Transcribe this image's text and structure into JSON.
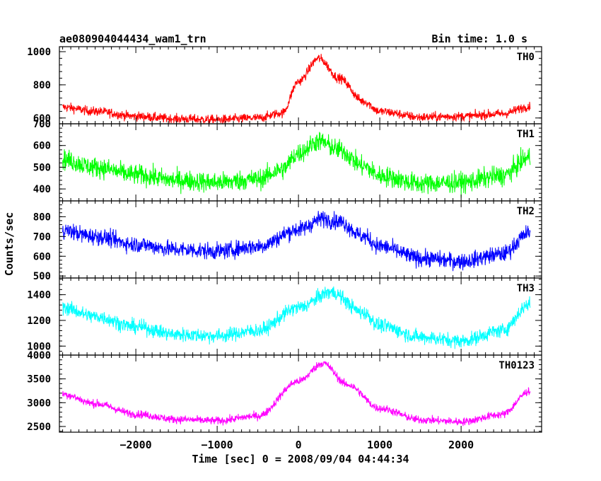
{
  "header": {
    "title": "ae080904044434_wam1_trn",
    "bin_time": "Bin time: 1.0 s"
  },
  "axes": {
    "xlabel": "Time [sec] 0 = 2008/09/04 04:44:34",
    "ylabel": "Counts/sec",
    "xlim": [
      -2940,
      2990
    ],
    "xticks": [
      -2000,
      -1000,
      0,
      1000,
      2000
    ],
    "xtick_labels": [
      "−2000",
      "−1000",
      "0",
      "1000",
      "2000"
    ]
  },
  "chart_data": {
    "type": "line",
    "title": "ae080904044434_wam1_trn",
    "xlabel": "Time [sec] 0 = 2008/09/04 04:44:34",
    "ylabel": "Counts/sec",
    "bin_time_s": 1.0,
    "x_range": [
      -2900,
      2850
    ],
    "grid": false,
    "legend": "none",
    "panels": [
      {
        "name": "TH0",
        "color": "#ff0000",
        "ylim": [
          565,
          1030
        ],
        "yticks": [
          600,
          800,
          1000
        ],
        "x": [
          -2900,
          -2500,
          -2000,
          -1500,
          -1000,
          -500,
          -200,
          0,
          250,
          500,
          800,
          1000,
          1500,
          2000,
          2500,
          2850
        ],
        "y": [
          665,
          640,
          610,
          595,
          590,
          600,
          630,
          820,
          960,
          840,
          700,
          640,
          605,
          610,
          625,
          670
        ],
        "noise": 30
      },
      {
        "name": "TH1",
        "color": "#00ff00",
        "ylim": [
          345,
          700
        ],
        "yticks": [
          400,
          500,
          600,
          700
        ],
        "x": [
          -2900,
          -2500,
          -2000,
          -1500,
          -1000,
          -500,
          -200,
          0,
          250,
          500,
          800,
          1000,
          1500,
          2000,
          2500,
          2850
        ],
        "y": [
          535,
          500,
          465,
          440,
          430,
          445,
          490,
          565,
          620,
          580,
          505,
          460,
          425,
          430,
          460,
          545
        ],
        "noise": 50
      },
      {
        "name": "TH2",
        "color": "#0000ff",
        "ylim": [
          490,
          880
        ],
        "yticks": [
          500,
          600,
          700,
          800
        ],
        "x": [
          -2900,
          -2500,
          -2000,
          -1500,
          -1000,
          -500,
          0,
          300,
          500,
          800,
          1000,
          1500,
          2000,
          2500,
          2850
        ],
        "y": [
          730,
          700,
          660,
          635,
          625,
          650,
          735,
          790,
          775,
          700,
          650,
          590,
          575,
          610,
          720
        ],
        "noise": 45
      },
      {
        "name": "TH3",
        "color": "#00ffff",
        "ylim": [
          930,
          1530
        ],
        "yticks": [
          1000,
          1200,
          1400
        ],
        "x": [
          -2900,
          -2500,
          -2000,
          -1500,
          -1000,
          -500,
          0,
          400,
          800,
          1000,
          1500,
          2000,
          2500,
          2850
        ],
        "y": [
          1300,
          1230,
          1150,
          1090,
          1080,
          1120,
          1300,
          1420,
          1260,
          1160,
          1070,
          1040,
          1120,
          1330
        ],
        "noise": 60
      },
      {
        "name": "TH0123",
        "color": "#ff00ff",
        "ylim": [
          2380,
          4000
        ],
        "yticks": [
          2500,
          3000,
          3500,
          4000
        ],
        "x": [
          -2900,
          -2500,
          -2000,
          -1500,
          -1000,
          -500,
          0,
          300,
          600,
          1000,
          1500,
          2000,
          2500,
          2850
        ],
        "y": [
          3180,
          2980,
          2760,
          2650,
          2620,
          2720,
          3450,
          3830,
          3380,
          2880,
          2640,
          2600,
          2750,
          3250
        ],
        "noise": 90
      }
    ]
  }
}
